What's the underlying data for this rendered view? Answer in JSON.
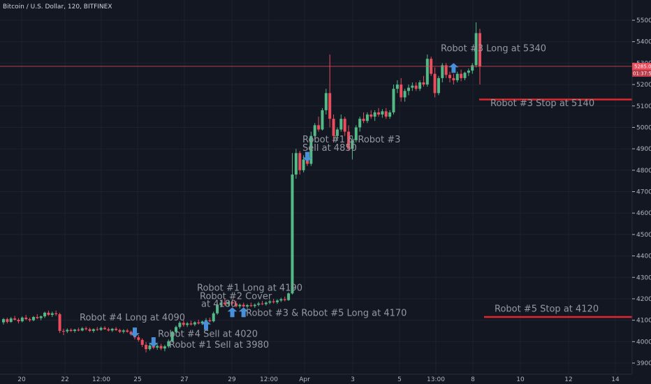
{
  "chart_data": {
    "type": "candlestick",
    "title": "Bitcoin / U.S. Dollar, 120, BITFINEX",
    "colors": {
      "up": "#53b987",
      "down": "#eb4d5c",
      "background": "#131722",
      "annotation_arrow": "#4a90d9",
      "stop_line": "#e0282e"
    },
    "ylim": [
      3870,
      5580
    ],
    "y_ticks": [
      "5500.0",
      "5400.0",
      "5300.0",
      "5200.0",
      "5100.0",
      "5000.0",
      "4900.0",
      "4800.0",
      "4700.0",
      "4600.0",
      "4500.0",
      "4400.0",
      "4300.0",
      "4200.0",
      "4100.0",
      "4000.0",
      "3900.0"
    ],
    "x_ticks": [
      "20",
      "22",
      "12:00",
      "25",
      "27",
      "29",
      "12:00",
      "Apr",
      "3",
      "5",
      "13:00",
      "8",
      "10",
      "12",
      "14"
    ],
    "current_price": "5285.0",
    "countdown": "01:37:54",
    "candles": [
      [
        4090,
        4110,
        4080,
        4105
      ],
      [
        4105,
        4112,
        4085,
        4092
      ],
      [
        4092,
        4115,
        4088,
        4108
      ],
      [
        4108,
        4120,
        4098,
        4102
      ],
      [
        4102,
        4110,
        4085,
        4095
      ],
      [
        4095,
        4118,
        4090,
        4112
      ],
      [
        4112,
        4125,
        4100,
        4105
      ],
      [
        4105,
        4112,
        4092,
        4100
      ],
      [
        4100,
        4120,
        4095,
        4115
      ],
      [
        4115,
        4128,
        4105,
        4110
      ],
      [
        4110,
        4122,
        4100,
        4118
      ],
      [
        4118,
        4140,
        4110,
        4135
      ],
      [
        4135,
        4145,
        4120,
        4125
      ],
      [
        4125,
        4140,
        4115,
        4132
      ],
      [
        4132,
        4145,
        4120,
        4128
      ],
      [
        4128,
        4135,
        4040,
        4050
      ],
      [
        4050,
        4060,
        4030,
        4048
      ],
      [
        4048,
        4062,
        4040,
        4055
      ],
      [
        4055,
        4062,
        4045,
        4050
      ],
      [
        4050,
        4060,
        4042,
        4056
      ],
      [
        4056,
        4065,
        4048,
        4052
      ],
      [
        4052,
        4068,
        4048,
        4062
      ],
      [
        4062,
        4070,
        4052,
        4058
      ],
      [
        4058,
        4065,
        4045,
        4050
      ],
      [
        4050,
        4062,
        4042,
        4058
      ],
      [
        4058,
        4068,
        4050,
        4055
      ],
      [
        4055,
        4070,
        4050,
        4064
      ],
      [
        4064,
        4072,
        4055,
        4058
      ],
      [
        4058,
        4066,
        4048,
        4052
      ],
      [
        4052,
        4064,
        4045,
        4060
      ],
      [
        4060,
        4068,
        4050,
        4054
      ],
      [
        4054,
        4060,
        4040,
        4046
      ],
      [
        4046,
        4058,
        4038,
        4052
      ],
      [
        4052,
        4060,
        4042,
        4046
      ],
      [
        4046,
        4052,
        4028,
        4034
      ],
      [
        4034,
        4040,
        4010,
        4020
      ],
      [
        4020,
        4030,
        4000,
        4008
      ],
      [
        4008,
        4015,
        3975,
        3985
      ],
      [
        3985,
        3998,
        3950,
        3965
      ],
      [
        3965,
        3990,
        3958,
        3982
      ],
      [
        3982,
        3995,
        3965,
        3972
      ],
      [
        3972,
        3988,
        3962,
        3980
      ],
      [
        3980,
        3990,
        3960,
        3968
      ],
      [
        3968,
        3985,
        3955,
        3978
      ],
      [
        3978,
        4010,
        3970,
        4002
      ],
      [
        4002,
        4050,
        3995,
        4045
      ],
      [
        4045,
        4075,
        4035,
        4068
      ],
      [
        4068,
        4095,
        4060,
        4088
      ],
      [
        4088,
        4100,
        4070,
        4078
      ],
      [
        4078,
        4092,
        4068,
        4085
      ],
      [
        4085,
        4098,
        4075,
        4080
      ],
      [
        4080,
        4095,
        4072,
        4090
      ],
      [
        4090,
        4102,
        4080,
        4085
      ],
      [
        4085,
        4098,
        4078,
        4094
      ],
      [
        4094,
        4110,
        4085,
        4100
      ],
      [
        4100,
        4112,
        4090,
        4095
      ],
      [
        4095,
        4140,
        4090,
        4132
      ],
      [
        4132,
        4180,
        4125,
        4170
      ],
      [
        4170,
        4195,
        4160,
        4182
      ],
      [
        4182,
        4198,
        4168,
        4175
      ],
      [
        4175,
        4190,
        4165,
        4185
      ],
      [
        4185,
        4198,
        4172,
        4178
      ],
      [
        4178,
        4190,
        4160,
        4165
      ],
      [
        4165,
        4178,
        4155,
        4172
      ],
      [
        4172,
        4182,
        4160,
        4164
      ],
      [
        4164,
        4176,
        4155,
        4170
      ],
      [
        4170,
        4182,
        4162,
        4166
      ],
      [
        4166,
        4178,
        4158,
        4172
      ],
      [
        4172,
        4186,
        4165,
        4178
      ],
      [
        4178,
        4190,
        4170,
        4175
      ],
      [
        4175,
        4188,
        4168,
        4182
      ],
      [
        4182,
        4195,
        4175,
        4188
      ],
      [
        4188,
        4200,
        4178,
        4184
      ],
      [
        4184,
        4198,
        4176,
        4192
      ],
      [
        4192,
        4205,
        4185,
        4198
      ],
      [
        4198,
        4210,
        4188,
        4194
      ],
      [
        4194,
        4230,
        4190,
        4225
      ],
      [
        4225,
        4880,
        4220,
        4780
      ],
      [
        4780,
        4900,
        4760,
        4880
      ],
      [
        4880,
        4890,
        4780,
        4800
      ],
      [
        4800,
        4870,
        4790,
        4850
      ],
      [
        4850,
        4880,
        4820,
        4830
      ],
      [
        4830,
        4980,
        4820,
        4960
      ],
      [
        4960,
        5020,
        4940,
        5010
      ],
      [
        5010,
        5050,
        4980,
        4990
      ],
      [
        4990,
        5090,
        4985,
        5080
      ],
      [
        5080,
        5180,
        5060,
        5160
      ],
      [
        5160,
        5340,
        5000,
        5040
      ],
      [
        5040,
        5060,
        4930,
        4960
      ],
      [
        4960,
        5000,
        4940,
        4990
      ],
      [
        4990,
        5060,
        4980,
        5040
      ],
      [
        5040,
        5050,
        4960,
        4980
      ],
      [
        4980,
        5010,
        4890,
        4900
      ],
      [
        4900,
        4960,
        4850,
        4940
      ],
      [
        4940,
        5010,
        4930,
        5000
      ],
      [
        5000,
        5050,
        4980,
        5040
      ],
      [
        5040,
        5070,
        5020,
        5030
      ],
      [
        5030,
        5070,
        5020,
        5060
      ],
      [
        5060,
        5080,
        5040,
        5050
      ],
      [
        5050,
        5080,
        5030,
        5070
      ],
      [
        5070,
        5090,
        5050,
        5060
      ],
      [
        5060,
        5085,
        5045,
        5075
      ],
      [
        5075,
        5090,
        5040,
        5050
      ],
      [
        5050,
        5080,
        5040,
        5070
      ],
      [
        5070,
        5200,
        5060,
        5180
      ],
      [
        5180,
        5220,
        5160,
        5200
      ],
      [
        5200,
        5230,
        5120,
        5140
      ],
      [
        5140,
        5180,
        5120,
        5170
      ],
      [
        5170,
        5200,
        5150,
        5185
      ],
      [
        5185,
        5210,
        5170,
        5195
      ],
      [
        5195,
        5210,
        5170,
        5180
      ],
      [
        5180,
        5220,
        5170,
        5210
      ],
      [
        5210,
        5240,
        5190,
        5200
      ],
      [
        5200,
        5340,
        5190,
        5320
      ],
      [
        5320,
        5330,
        5240,
        5250
      ],
      [
        5250,
        5280,
        5140,
        5160
      ],
      [
        5160,
        5240,
        5150,
        5230
      ],
      [
        5230,
        5300,
        5210,
        5290
      ],
      [
        5290,
        5300,
        5230,
        5245
      ],
      [
        5245,
        5260,
        5210,
        5230
      ],
      [
        5230,
        5250,
        5200,
        5220
      ],
      [
        5220,
        5260,
        5210,
        5250
      ],
      [
        5250,
        5270,
        5215,
        5230
      ],
      [
        5230,
        5260,
        5220,
        5255
      ],
      [
        5255,
        5275,
        5240,
        5265
      ],
      [
        5265,
        5300,
        5250,
        5290
      ],
      [
        5290,
        5490,
        5280,
        5440
      ],
      [
        5440,
        5460,
        5200,
        5285
      ]
    ],
    "stop_lines": [
      {
        "value": 5130,
        "label": "Robot #3 Stop at 5140"
      },
      {
        "value": 4115,
        "label": "Robot #5 Stop at 4120"
      }
    ],
    "arrows": [
      {
        "candle": 35,
        "price": 4020,
        "dir": "down"
      },
      {
        "candle": 40,
        "price": 3975,
        "dir": "down"
      },
      {
        "candle": 54,
        "price": 4100,
        "dir": "up"
      },
      {
        "candle": 61,
        "price": 4160,
        "dir": "up"
      },
      {
        "candle": 64,
        "price": 4160,
        "dir": "up"
      },
      {
        "candle": 81,
        "price": 4840,
        "dir": "down"
      },
      {
        "candle": 120,
        "price": 5300,
        "dir": "up"
      }
    ],
    "annotations": [
      {
        "text": "Robot #4 Long at 4090",
        "price": 4098,
        "candle": 20
      },
      {
        "text": "Robot #4 Sell at 4020",
        "price": 4022,
        "candle": 41
      },
      {
        "text": "Robot #1 Sell at 3980",
        "price": 3972,
        "candle": 43
      },
      {
        "text": "Robot #1 Long at 4190",
        "price": 4238,
        "candle": 50
      },
      {
        "text": "Robot #2 Cover",
        "price": 4198,
        "candle": 51
      },
      {
        "text": "at 4180",
        "price": 4162,
        "candle": 52
      },
      {
        "text": "Robot #3 & Robot #5 Long at 4170",
        "price": 4120,
        "candle": 63
      },
      {
        "text": "Robot #1 & Robot #3",
        "price": 4930,
        "candle": 77
      },
      {
        "text": "Sell at 4850",
        "price": 4890,
        "candle": 77
      },
      {
        "text": "Robot #3 Long at 5340",
        "price": 5355,
        "candle": 112
      },
      {
        "text": "Robot #3 Stop at 5140",
        "price": 5100,
        "candle": 125
      },
      {
        "text": "Robot #5 Stop at 4120",
        "price": 4140,
        "candle": 126
      }
    ]
  }
}
